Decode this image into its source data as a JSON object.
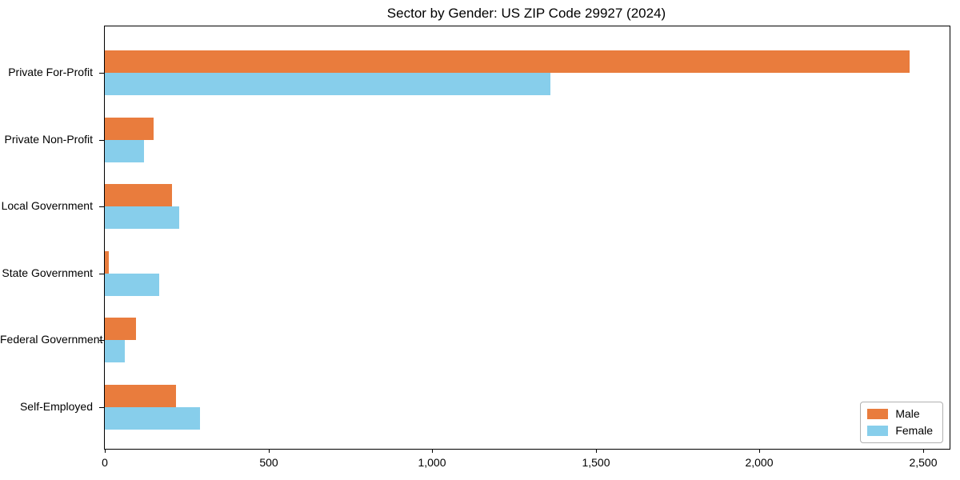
{
  "chart_data": {
    "type": "bar",
    "orientation": "horizontal",
    "title": "Sector by Gender: US ZIP Code 29927 (2024)",
    "categories": [
      "Private For-Profit",
      "Private Non-Profit",
      "Local Government",
      "State Government",
      "Federal Government",
      "Self-Employed"
    ],
    "series": [
      {
        "name": "Male",
        "color": "#e97c3d",
        "values": [
          2458,
          150,
          205,
          13,
          96,
          218
        ]
      },
      {
        "name": "Female",
        "color": "#87ceeb",
        "values": [
          1360,
          120,
          228,
          165,
          61,
          290
        ]
      }
    ],
    "xlabel": "",
    "ylabel": "",
    "xlim": [
      0,
      2500
    ],
    "x_ticks": [
      0,
      500,
      1000,
      1500,
      2000,
      2500
    ],
    "x_tick_labels": [
      "0",
      "500",
      "1,000",
      "1,500",
      "2,000",
      "2,500"
    ],
    "grid": false,
    "legend_position": "lower right",
    "background_color": "#ffffff",
    "spine_color": "#000000",
    "text_color": "#000000"
  }
}
